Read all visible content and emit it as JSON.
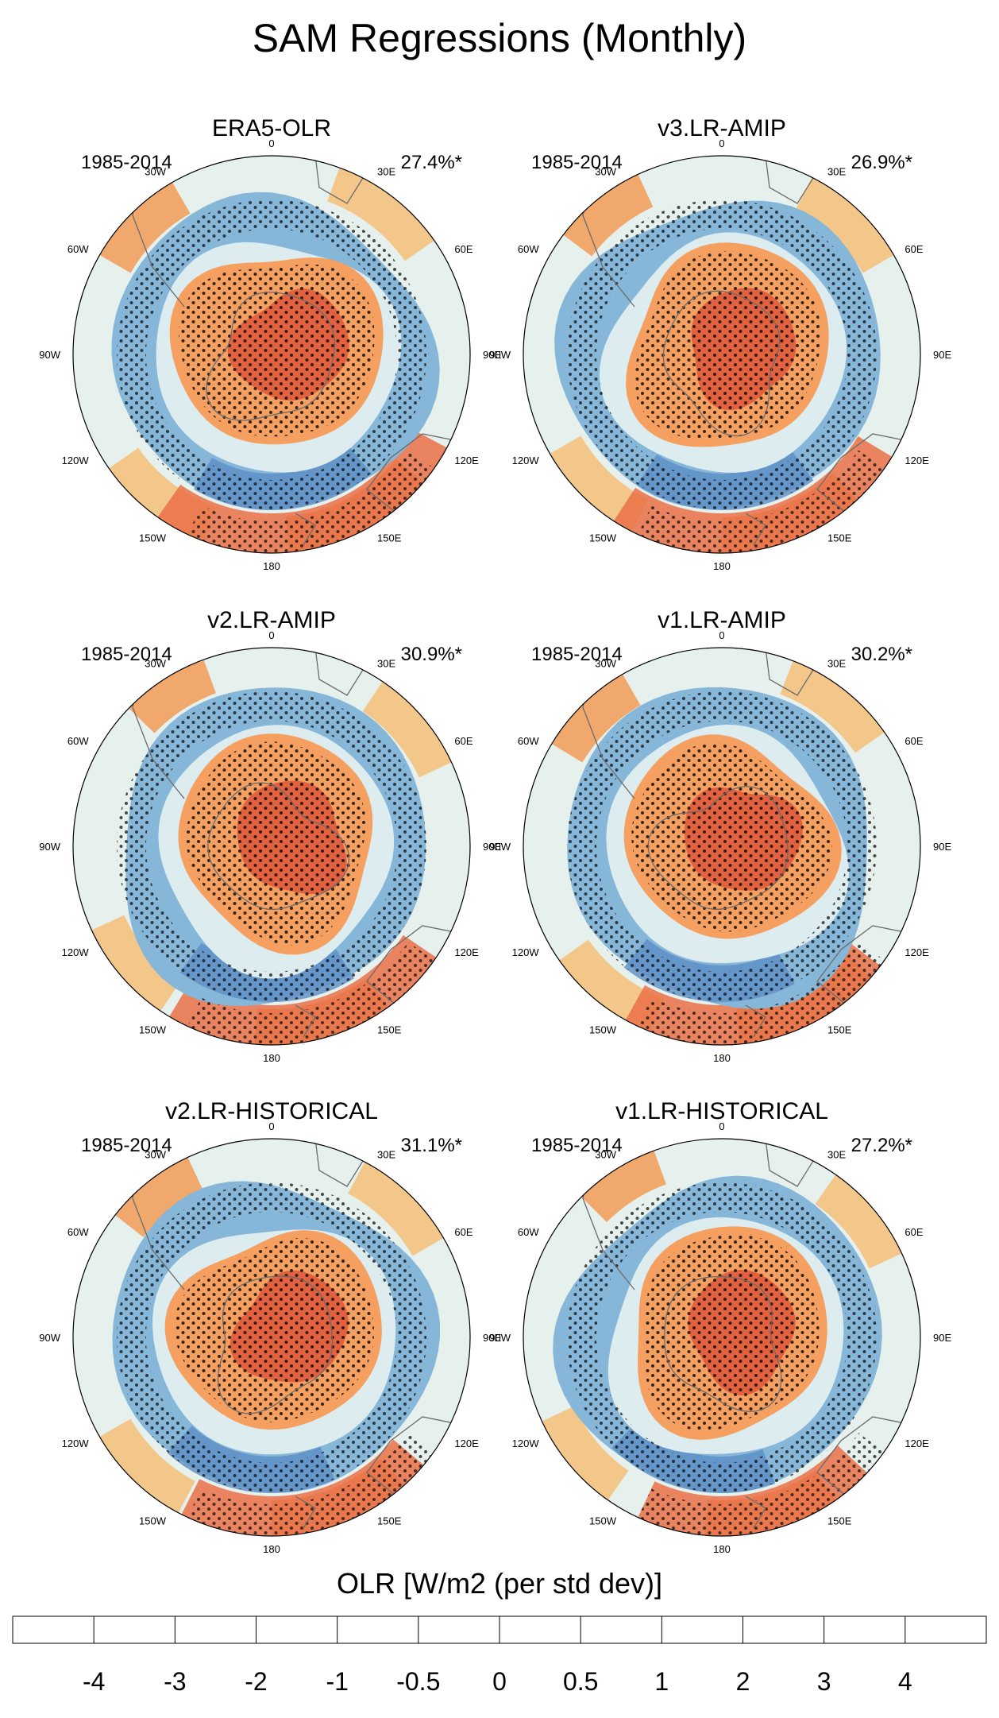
{
  "title": "SAM Regressions (Monthly)",
  "panels": [
    {
      "name": "ERA5-OLR",
      "period": "1985-2014",
      "variance": "27.4%*"
    },
    {
      "name": "v3.LR-AMIP",
      "period": "1985-2014",
      "variance": "26.9%*"
    },
    {
      "name": "v2.LR-AMIP",
      "period": "1985-2014",
      "variance": "30.9%*"
    },
    {
      "name": "v1.LR-AMIP",
      "period": "1985-2014",
      "variance": "30.2%*"
    },
    {
      "name": "v2.LR-HISTORICAL",
      "period": "1985-2014",
      "variance": "31.1%*"
    },
    {
      "name": "v1.LR-HISTORICAL",
      "period": "1985-2014",
      "variance": "27.2%*"
    }
  ],
  "longitude_labels": [
    {
      "angle": 0,
      "label": "0"
    },
    {
      "angle": 30,
      "label": "30E"
    },
    {
      "angle": 60,
      "label": "60E"
    },
    {
      "angle": 90,
      "label": "90E"
    },
    {
      "angle": 120,
      "label": "120E"
    },
    {
      "angle": 150,
      "label": "150E"
    },
    {
      "angle": 180,
      "label": "180"
    },
    {
      "angle": -150,
      "label": "150W"
    },
    {
      "angle": -120,
      "label": "120W"
    },
    {
      "angle": -90,
      "label": "90W"
    },
    {
      "angle": -60,
      "label": "60W"
    },
    {
      "angle": -30,
      "label": "30W"
    }
  ],
  "colorbar": {
    "label": "OLR [W/m2 (per std dev)]",
    "colors": [
      "#a50f26",
      "#d73027",
      "#ee5b3c",
      "#f89051",
      "#fdc374",
      "#f7e4a3",
      "#e3f2f0",
      "#b6dbe9",
      "#8dbfde",
      "#6397cc",
      "#4466b0",
      "#2e3591"
    ],
    "ticks": [
      "-4",
      "-3",
      "-2",
      "-1",
      "-0.5",
      "0",
      "0.5",
      "1",
      "2",
      "3",
      "4"
    ]
  },
  "palette": {
    "ring_blue": "#86b6d8",
    "ring_blue_dark": "#5b8fc6",
    "core_orange": "#f5a060",
    "core_red": "#e4613f",
    "outer_pale": "#e6f0ec",
    "outer_orange": "#f1a05e",
    "continent_line": "#6b6b6b"
  }
}
